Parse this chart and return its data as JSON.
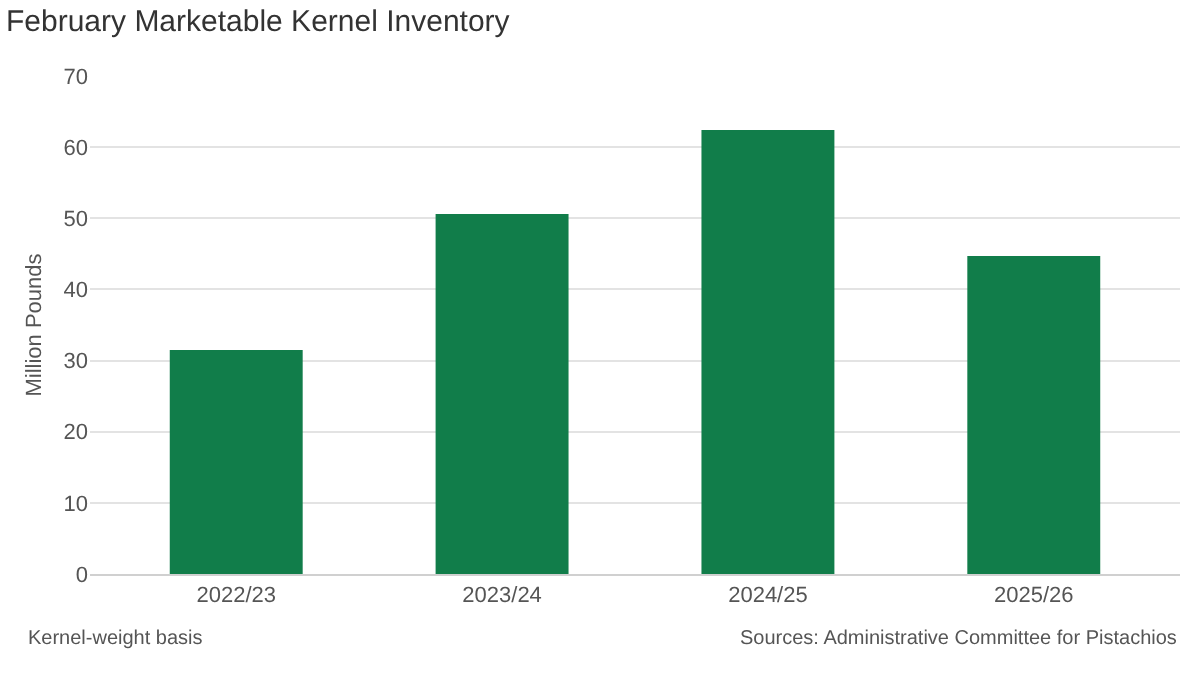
{
  "chart_data": {
    "type": "bar",
    "title": "February Marketable Kernel Inventory",
    "ylabel": "Million Pounds",
    "categories": [
      "2022/23",
      "2023/24",
      "2024/25",
      "2025/26"
    ],
    "values": [
      31.5,
      50.6,
      62.4,
      44.7
    ],
    "color": "#117d4a",
    "ylim": [
      0,
      70
    ],
    "yticks": [
      0,
      10,
      20,
      30,
      40,
      50,
      60,
      70
    ],
    "grid": "y",
    "annotations": [
      "Kernel-weight basis",
      "Sources: Administrative Committee for Pistachios"
    ]
  }
}
